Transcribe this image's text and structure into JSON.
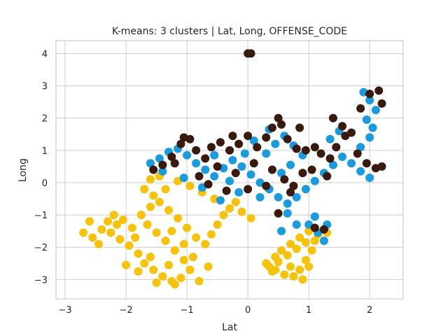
{
  "chart_data": {
    "type": "scatter",
    "title": "K-means: 3 clusters | Lat, Long, OFFENSE_CODE",
    "xlabel": "Lat",
    "ylabel": "Long",
    "xlim": [
      -3.15,
      2.55
    ],
    "ylim": [
      -3.6,
      4.4
    ],
    "xticks": [
      -3,
      -2,
      -1,
      0,
      1,
      2
    ],
    "xtick_labels": [
      "−3",
      "−2",
      "−1",
      "0",
      "1",
      "2"
    ],
    "yticks": [
      -3,
      -2,
      -1,
      0,
      1,
      2,
      3,
      4
    ],
    "ytick_labels": [
      "−3",
      "−2",
      "−1",
      "0",
      "1",
      "2",
      "3",
      "4"
    ],
    "grid": true,
    "colors": {
      "cluster_yellow": "#F7C20A",
      "cluster_blue": "#1A9BE0",
      "cluster_dark": "#3A1A0C",
      "grid": "#cccccc",
      "axes_edge": "#cccccc"
    },
    "series": [
      {
        "color": "#F7C20A",
        "points": [
          [
            -2.7,
            -1.55
          ],
          [
            -2.55,
            -1.7
          ],
          [
            -2.4,
            -1.45
          ],
          [
            -2.3,
            -1.2
          ],
          [
            -2.2,
            -1.0
          ],
          [
            -2.05,
            -1.15
          ],
          [
            -1.9,
            -1.4
          ],
          [
            -2.1,
            -1.75
          ],
          [
            -1.95,
            -1.95
          ],
          [
            -1.8,
            -2.2
          ],
          [
            -1.7,
            -2.5
          ],
          [
            -1.55,
            -2.7
          ],
          [
            -1.4,
            -2.9
          ],
          [
            -1.25,
            -3.05
          ],
          [
            -1.1,
            -2.95
          ],
          [
            -0.95,
            -2.7
          ],
          [
            -1.05,
            -2.4
          ],
          [
            -1.2,
            -2.1
          ],
          [
            -1.35,
            -1.8
          ],
          [
            -1.5,
            -1.55
          ],
          [
            -1.65,
            -1.3
          ],
          [
            -1.75,
            -1.0
          ],
          [
            -1.6,
            -0.75
          ],
          [
            -1.45,
            -0.6
          ],
          [
            -1.3,
            -0.85
          ],
          [
            -1.15,
            -1.1
          ],
          [
            -1.0,
            -1.4
          ],
          [
            -0.85,
            -1.7
          ],
          [
            -0.7,
            -1.9
          ],
          [
            -0.6,
            -1.6
          ],
          [
            -0.5,
            -1.3
          ],
          [
            -0.4,
            -1.0
          ],
          [
            -0.3,
            -0.8
          ],
          [
            -0.2,
            -0.6
          ],
          [
            -0.1,
            -0.9
          ],
          [
            0.05,
            -1.1
          ],
          [
            -0.55,
            -0.5
          ],
          [
            -0.75,
            -0.3
          ],
          [
            -0.95,
            -0.1
          ],
          [
            -1.15,
            0.05
          ],
          [
            -1.35,
            -0.2
          ],
          [
            -1.55,
            -0.4
          ],
          [
            -1.7,
            -0.2
          ],
          [
            -1.6,
            0.1
          ],
          [
            -1.45,
            0.2
          ],
          [
            -1.25,
            -1.5
          ],
          [
            -1.05,
            -1.9
          ],
          [
            -0.9,
            -2.3
          ],
          [
            -1.3,
            -2.55
          ],
          [
            -1.6,
            -2.3
          ],
          [
            -1.8,
            -2.75
          ],
          [
            -2.0,
            -2.55
          ],
          [
            -1.5,
            -3.1
          ],
          [
            -1.2,
            -3.15
          ],
          [
            -0.65,
            -2.6
          ],
          [
            -0.8,
            -3.05
          ],
          [
            -2.45,
            -1.9
          ],
          [
            -2.6,
            -1.2
          ],
          [
            -2.25,
            -1.55
          ],
          [
            -2.15,
            -1.3
          ],
          [
            -1.85,
            -1.7
          ],
          [
            0.3,
            -2.5
          ],
          [
            0.45,
            -2.3
          ],
          [
            0.55,
            -2.1
          ],
          [
            0.7,
            -1.9
          ],
          [
            0.85,
            -1.7
          ],
          [
            1.0,
            -1.5
          ],
          [
            1.1,
            -1.8
          ],
          [
            1.05,
            -2.1
          ],
          [
            0.95,
            -2.4
          ],
          [
            0.85,
            -2.7
          ],
          [
            0.75,
            -2.9
          ],
          [
            0.6,
            -2.85
          ],
          [
            0.45,
            -2.7
          ],
          [
            0.5,
            -2.45
          ],
          [
            0.65,
            -2.25
          ],
          [
            0.8,
            -2.05
          ],
          [
            0.95,
            -1.85
          ],
          [
            1.15,
            -1.6
          ],
          [
            1.3,
            -1.55
          ],
          [
            0.9,
            -3.0
          ],
          [
            0.4,
            -2.75
          ],
          [
            0.35,
            -2.6
          ],
          [
            1.0,
            -2.6
          ],
          [
            0.7,
            -2.6
          ]
        ]
      },
      {
        "color": "#1A9BE0",
        "points": [
          [
            -1.6,
            0.6
          ],
          [
            -1.45,
            0.75
          ],
          [
            -1.3,
            0.95
          ],
          [
            -1.15,
            1.05
          ],
          [
            -1.0,
            0.85
          ],
          [
            -0.85,
            0.6
          ],
          [
            -0.7,
            0.4
          ],
          [
            -0.55,
            0.2
          ],
          [
            -0.4,
            0.45
          ],
          [
            -0.25,
            0.7
          ],
          [
            -0.1,
            0.5
          ],
          [
            0.05,
            0.25
          ],
          [
            0.2,
            0.0
          ],
          [
            0.35,
            -0.2
          ],
          [
            0.5,
            -0.45
          ],
          [
            0.65,
            -0.65
          ],
          [
            0.8,
            -0.45
          ],
          [
            0.95,
            -0.2
          ],
          [
            1.1,
            0.05
          ],
          [
            1.25,
            0.3
          ],
          [
            1.4,
            0.55
          ],
          [
            1.55,
            0.8
          ],
          [
            1.7,
            0.6
          ],
          [
            1.85,
            0.35
          ],
          [
            2.0,
            0.15
          ],
          [
            1.85,
            1.1
          ],
          [
            2.0,
            1.4
          ],
          [
            2.05,
            1.7
          ],
          [
            1.95,
            1.95
          ],
          [
            2.1,
            2.25
          ],
          [
            2.0,
            2.55
          ],
          [
            1.9,
            2.8
          ],
          [
            1.5,
            1.6
          ],
          [
            1.35,
            1.35
          ],
          [
            0.3,
            0.9
          ],
          [
            0.45,
            1.2
          ],
          [
            0.6,
            1.45
          ],
          [
            0.75,
            1.15
          ],
          [
            0.9,
            0.85
          ],
          [
            0.2,
            -0.45
          ],
          [
            -0.15,
            -0.3
          ],
          [
            -0.45,
            -0.55
          ],
          [
            -0.75,
            -0.15
          ],
          [
            -1.05,
            0.15
          ],
          [
            -1.4,
            0.35
          ],
          [
            -0.3,
            0.05
          ],
          [
            0.55,
            0.3
          ],
          [
            0.7,
            0.55
          ],
          [
            0.35,
            1.65
          ],
          [
            0.1,
            1.3
          ],
          [
            -0.05,
            0.9
          ],
          [
            -0.55,
            0.85
          ],
          [
            1.0,
            -1.3
          ],
          [
            1.1,
            -1.05
          ],
          [
            1.3,
            -1.3
          ],
          [
            0.8,
            -1.3
          ],
          [
            0.55,
            -1.5
          ],
          [
            1.15,
            -1.55
          ],
          [
            1.25,
            -1.8
          ],
          [
            0.65,
            -0.95
          ]
        ]
      },
      {
        "color": "#3A1A0C",
        "points": [
          [
            -1.55,
            0.4
          ],
          [
            -1.4,
            0.55
          ],
          [
            -1.25,
            0.8
          ],
          [
            -1.1,
            1.2
          ],
          [
            -0.95,
            1.35
          ],
          [
            -1.05,
            1.4
          ],
          [
            -0.85,
            1.0
          ],
          [
            -0.7,
            0.75
          ],
          [
            -0.6,
            1.1
          ],
          [
            -0.45,
            1.25
          ],
          [
            -0.3,
            1.0
          ],
          [
            -0.15,
            1.2
          ],
          [
            0.0,
            1.45
          ],
          [
            0.15,
            1.1
          ],
          [
            0.3,
            1.4
          ],
          [
            0.4,
            1.7
          ],
          [
            0.5,
            2.0
          ],
          [
            0.55,
            1.8
          ],
          [
            0.65,
            1.35
          ],
          [
            0.8,
            1.05
          ],
          [
            0.95,
            1.0
          ],
          [
            1.1,
            1.1
          ],
          [
            1.2,
            0.9
          ],
          [
            1.35,
            0.75
          ],
          [
            1.45,
            1.1
          ],
          [
            1.6,
            1.45
          ],
          [
            1.7,
            1.55
          ],
          [
            1.8,
            0.9
          ],
          [
            1.95,
            0.6
          ],
          [
            2.1,
            0.45
          ],
          [
            2.2,
            0.5
          ],
          [
            1.4,
            2.0
          ],
          [
            1.55,
            1.75
          ],
          [
            1.85,
            2.3
          ],
          [
            2.0,
            2.75
          ],
          [
            2.15,
            2.85
          ],
          [
            2.2,
            2.45
          ],
          [
            0.0,
            4.0
          ],
          [
            0.05,
            4.0
          ],
          [
            -0.8,
            0.2
          ],
          [
            -0.5,
            0.5
          ],
          [
            -0.2,
            0.3
          ],
          [
            0.1,
            0.6
          ],
          [
            0.4,
            0.4
          ],
          [
            0.6,
            0.1
          ],
          [
            0.75,
            -0.1
          ],
          [
            0.9,
            0.3
          ],
          [
            0.3,
            -0.1
          ],
          [
            0.0,
            -0.2
          ],
          [
            -0.35,
            -0.25
          ],
          [
            -0.65,
            -0.05
          ],
          [
            -1.2,
            0.6
          ],
          [
            1.1,
            -1.4
          ],
          [
            1.25,
            -1.45
          ],
          [
            0.5,
            -0.95
          ],
          [
            0.7,
            -0.3
          ],
          [
            1.05,
            0.4
          ],
          [
            1.3,
            0.2
          ],
          [
            -0.25,
            1.45
          ],
          [
            0.85,
            1.7
          ]
        ]
      }
    ]
  }
}
